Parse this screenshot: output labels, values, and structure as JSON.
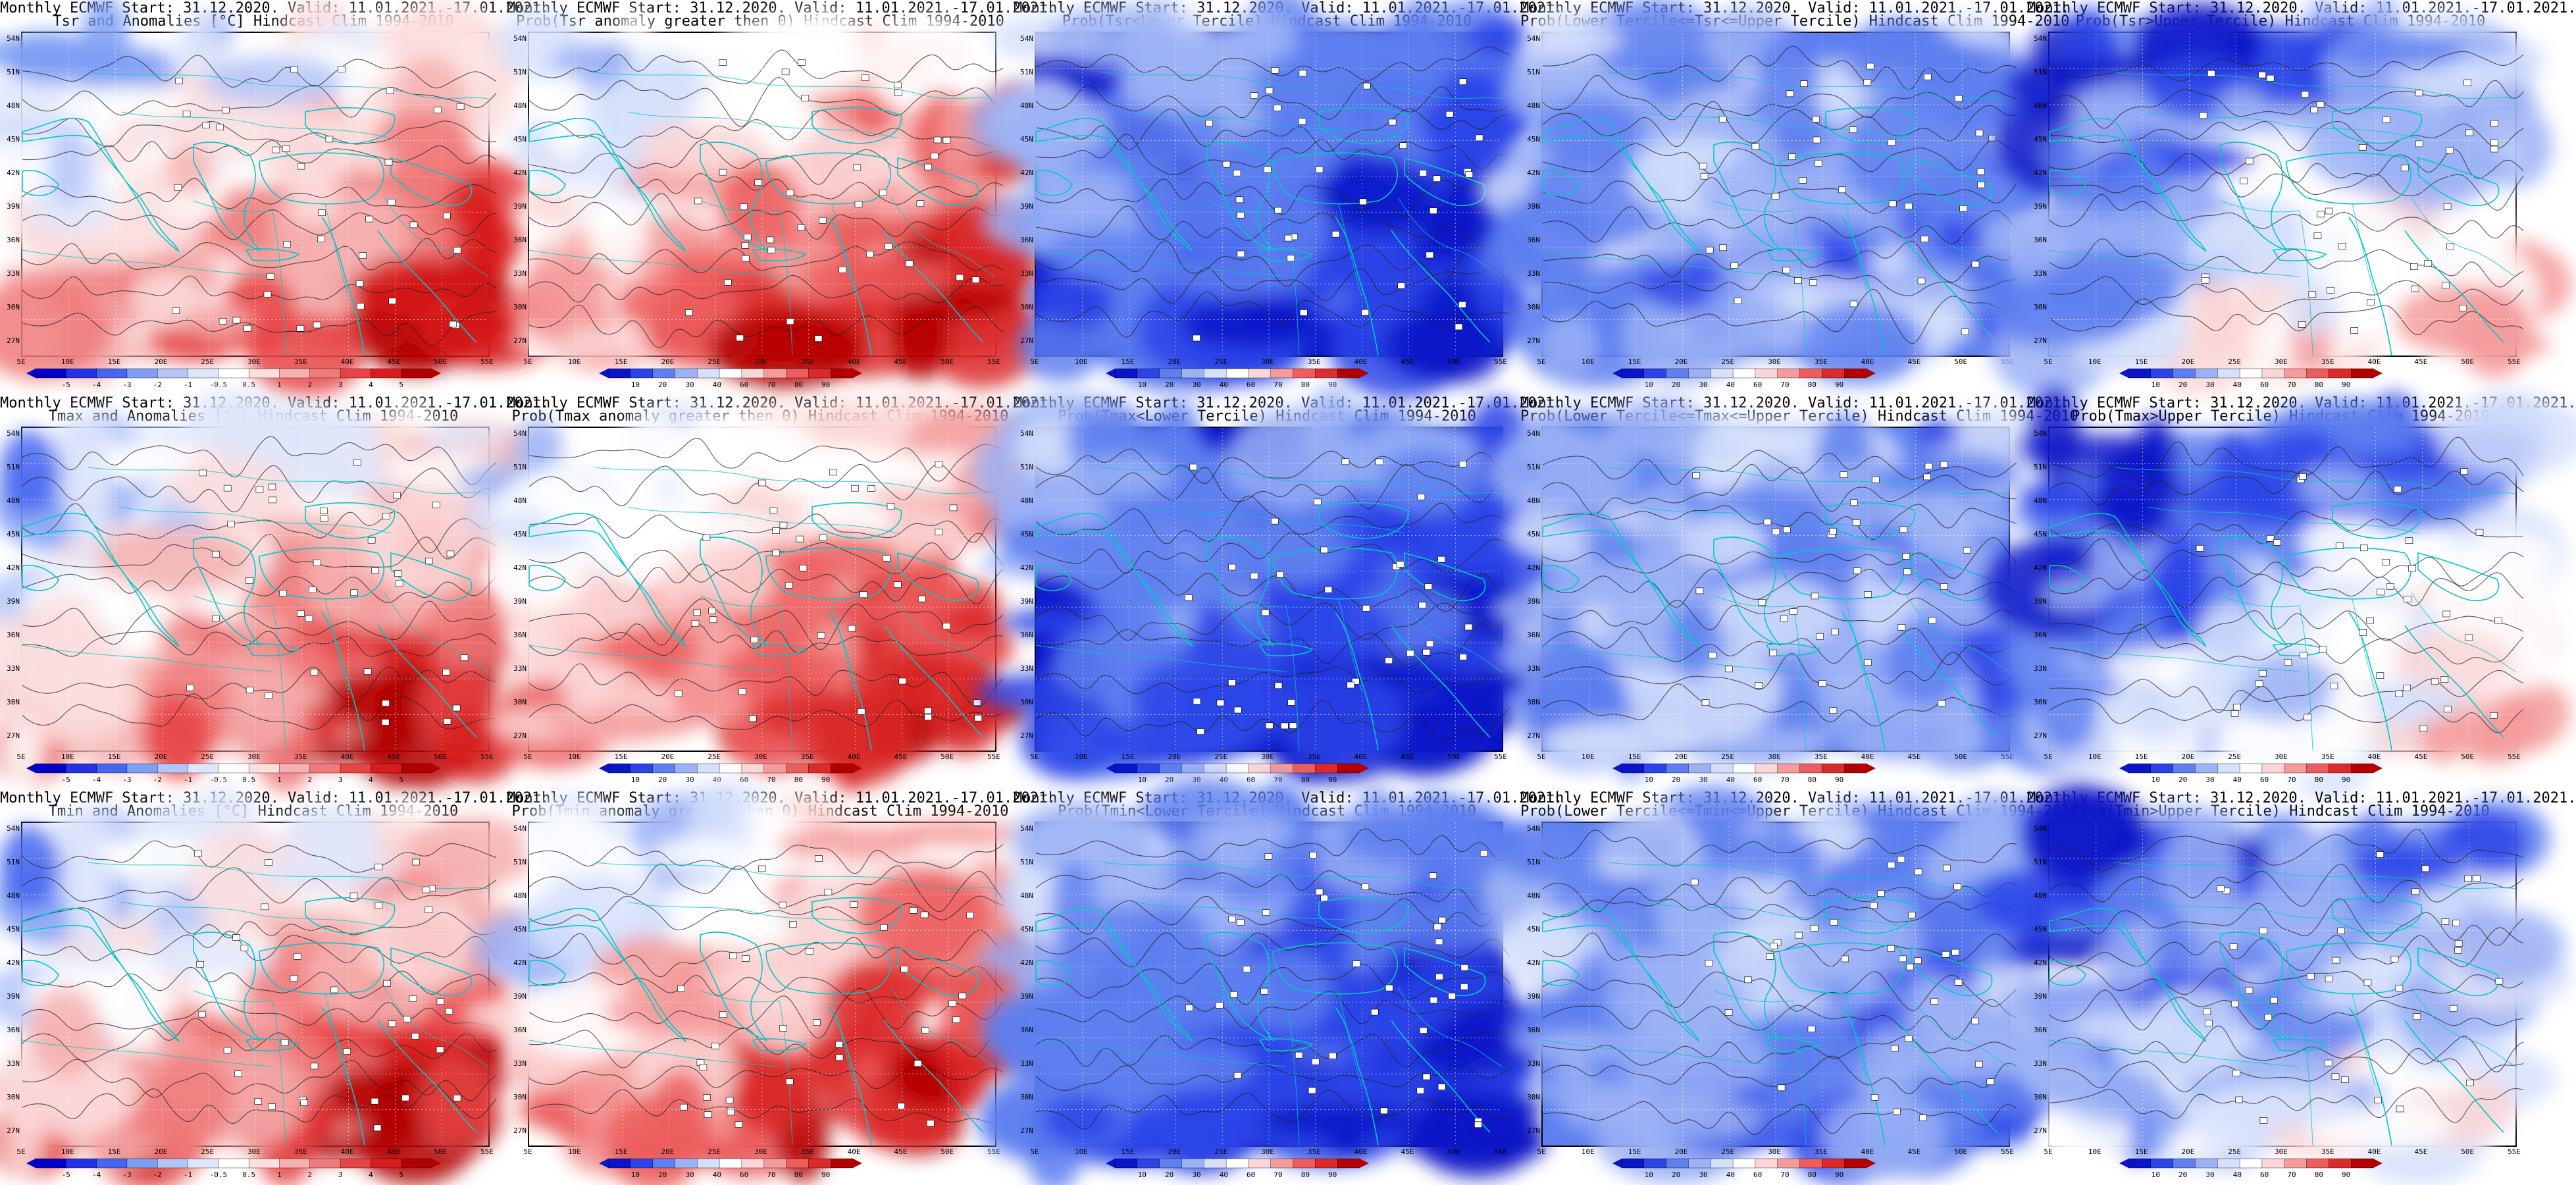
{
  "page": {
    "lat_ticks": [
      "54N",
      "51N",
      "48N",
      "45N",
      "42N",
      "39N",
      "36N",
      "33N",
      "30N",
      "27N"
    ],
    "lon_ticks": [
      "5E",
      "10E",
      "15E",
      "20E",
      "25E",
      "30E",
      "35E",
      "40E",
      "45E",
      "50E",
      "55E"
    ],
    "colors": {
      "anomaly": [
        "#0000c8",
        "#2233e6",
        "#4466f0",
        "#7f9ff5",
        "#b4c6f8",
        "#dfe6fb",
        "#ffffff",
        "#fbdede",
        "#f6b0b0",
        "#f07a7a",
        "#e84444",
        "#d81c1c",
        "#b30000"
      ],
      "probability": [
        "#0a14c8",
        "#2a44e8",
        "#5d7ff0",
        "#9bb2f6",
        "#d6e0fb",
        "#ffffff",
        "#fbd6d6",
        "#f59b9b",
        "#ec5d5d",
        "#dc2a2a",
        "#b30000"
      ],
      "coast": "#00c8c8",
      "contour": "#222222"
    }
  },
  "colorbars": {
    "anomaly": [
      "-5",
      "-4",
      "-3",
      "-2",
      "-1",
      "-0.5",
      "0.5",
      "1",
      "2",
      "3",
      "4",
      "5"
    ],
    "probability": [
      "10",
      "20",
      "30",
      "40",
      "60",
      "70",
      "80",
      "90"
    ]
  },
  "panels": [
    {
      "title1": "Monthly ECMWF Start: 31.12.2020. Valid: 11.01.2021.-17.01.2021.",
      "title2": "Tsr and Anomalies [°C] Hindcast Clim 1994-2010",
      "kind": "anomaly",
      "palette": "anomaly",
      "warmth": 0.72
    },
    {
      "title1": "Monthly ECMWF Start: 31.12.2020. Valid: 11.01.2021.-17.01.2021.",
      "title2": "Prob(Tsr anomaly greater then 0) Hindcast Clim 1994-2010",
      "kind": "prob_warm",
      "palette": "probability",
      "warmth": 0.88
    },
    {
      "title1": "Monthly ECMWF Start: 31.12.2020. Valid: 11.01.2021.-17.01.2021.",
      "title2": "Prob(Tsr<Lower Tercile) Hindcast Clim 1994-2010",
      "kind": "prob_cold",
      "palette": "probability",
      "warmth": 0.06
    },
    {
      "title1": "Monthly ECMWF Start: 31.12.2020. Valid: 11.01.2021.-17.01.2021.",
      "title2": "Prob(Lower Tercile<=Tsr<=Upper Tercile) Hindcast Clim 1994-2010",
      "kind": "prob_mid",
      "palette": "probability",
      "warmth": 0.25
    },
    {
      "title1": "Monthly ECMWF Start: 31.12.2020. Valid: 11.01.2021.-17.01.2021.",
      "title2": "Prob(Tsr>Upper Tercile) Hindcast Clim 1994-2010",
      "kind": "prob_upper",
      "palette": "probability",
      "warmth": 0.68
    },
    {
      "title1": "Monthly ECMWF Start: 31.12.2020. Valid: 11.01.2021.-17.01.2021.",
      "title2": "Tmax and Anomalies [°C] Hindcast Clim 1994-2010",
      "kind": "anomaly",
      "palette": "anomaly",
      "warmth": 0.7
    },
    {
      "title1": "Monthly ECMWF Start: 31.12.2020. Valid: 11.01.2021.-17.01.2021.",
      "title2": "Prob(Tmax anomaly greater then 0) Hindcast Clim 1994-2010",
      "kind": "prob_warm",
      "palette": "probability",
      "warmth": 0.84
    },
    {
      "title1": "Monthly ECMWF Start: 31.12.2020. Valid: 11.01.2021.-17.01.2021.",
      "title2": "Prob(Tmax<Lower Tercile) Hindcast Clim 1994-2010",
      "kind": "prob_cold",
      "palette": "probability",
      "warmth": 0.1
    },
    {
      "title1": "Monthly ECMWF Start: 31.12.2020. Valid: 11.01.2021.-17.01.2021.",
      "title2": "Prob(Lower Tercile<=Tmax<=Upper Tercile) Hindcast Clim 1994-2010",
      "kind": "prob_mid",
      "palette": "probability",
      "warmth": 0.24
    },
    {
      "title1": "Monthly ECMWF Start: 31.12.2020. Valid: 11.01.2021.-17.01.2021.",
      "title2": "Prob(Tmax>Upper Tercile) Hindcast Clim 1994-2010",
      "kind": "prob_upper",
      "palette": "probability",
      "warmth": 0.62
    },
    {
      "title1": "Monthly ECMWF Start: 31.12.2020. Valid: 11.01.2021.-17.01.2021.",
      "title2": "Tmin and Anomalies [°C] Hindcast Clim 1994-2010",
      "kind": "anomaly",
      "palette": "anomaly",
      "warmth": 0.74
    },
    {
      "title1": "Monthly ECMWF Start: 31.12.2020. Valid: 11.01.2021.-17.01.2021.",
      "title2": "Prob(Tmin anomaly greater then 0) Hindcast Clim 1994-2010",
      "kind": "prob_warm",
      "palette": "probability",
      "warmth": 0.9
    },
    {
      "title1": "Monthly ECMWF Start: 31.12.2020. Valid: 11.01.2021.-17.01.2021.",
      "title2": "Prob(Tmin<Lower Tercile) Hindcast Clim 1994-2010",
      "kind": "prob_cold",
      "palette": "probability",
      "warmth": 0.05
    },
    {
      "title1": "Monthly ECMWF Start: 31.12.2020. Valid: 11.01.2021.-17.01.2021.",
      "title2": "Prob(Lower Tercile<=Tmin<=Upper Tercile) Hindcast Clim 1994-2010",
      "kind": "prob_mid",
      "palette": "probability",
      "warmth": 0.26
    },
    {
      "title1": "Monthly ECMWF Start: 31.12.2020. Valid: 11.01.2021.-17.01.2021.",
      "title2": "Prob(Tmin>Upper Tercile) Hindcast Clim 1994-2010",
      "kind": "prob_upper",
      "palette": "probability",
      "warmth": 0.6
    }
  ]
}
